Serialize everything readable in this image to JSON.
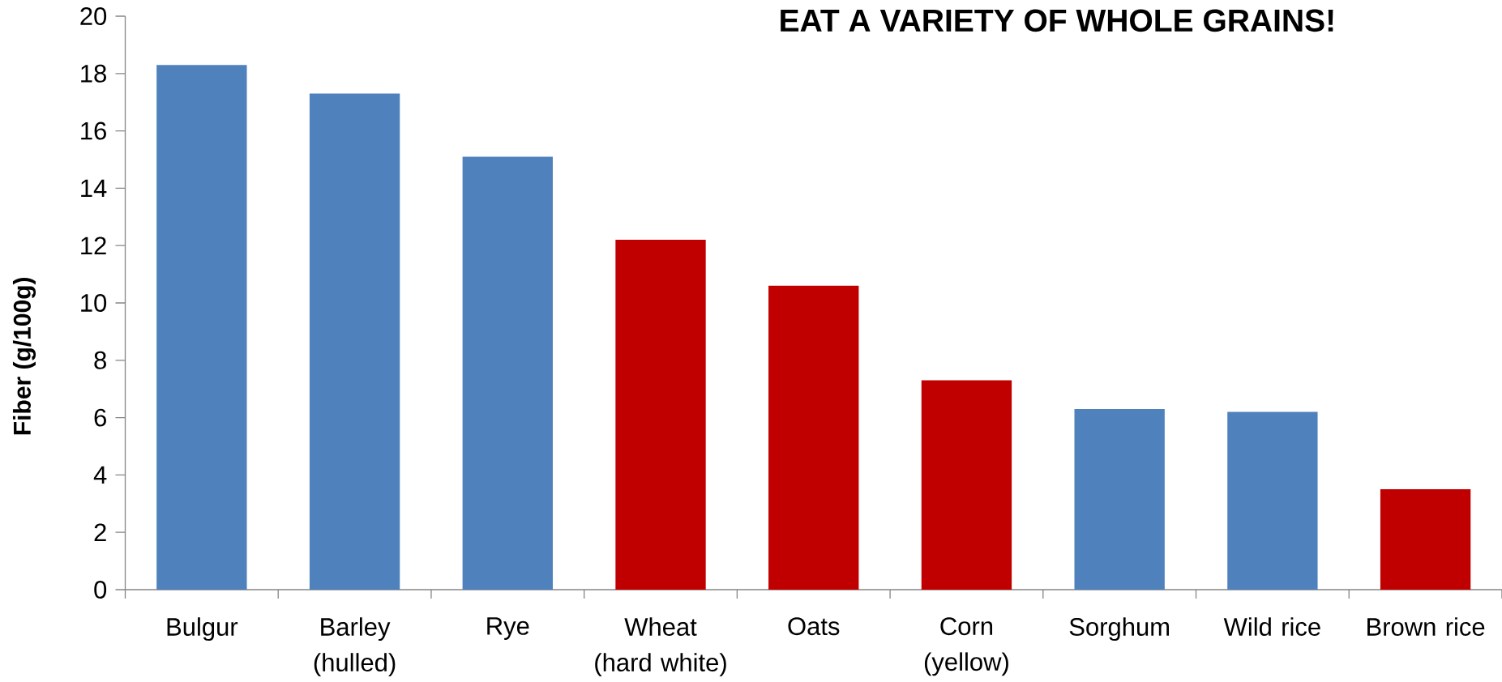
{
  "chart_data": {
    "type": "bar",
    "title": "EAT A VARIETY OF WHOLE GRAINS!",
    "ylabel": "Fiber (g/100g)",
    "categories": [
      "Bulgur",
      "Barley (hulled)",
      "Rye",
      "Wheat (hard white)",
      "Oats",
      "Corn (yellow)",
      "Sorghum",
      "Wild rice",
      "Brown rice"
    ],
    "values": [
      18.3,
      17.3,
      15.1,
      12.2,
      10.6,
      7.3,
      6.3,
      6.2,
      3.5
    ],
    "colors": [
      "#4f81bd",
      "#4f81bd",
      "#4f81bd",
      "#c00000",
      "#c00000",
      "#c00000",
      "#4f81bd",
      "#4f81bd",
      "#c00000"
    ],
    "ylim": [
      0,
      20
    ],
    "yticks": [
      0,
      2,
      4,
      6,
      8,
      10,
      12,
      14,
      16,
      18,
      20
    ]
  }
}
